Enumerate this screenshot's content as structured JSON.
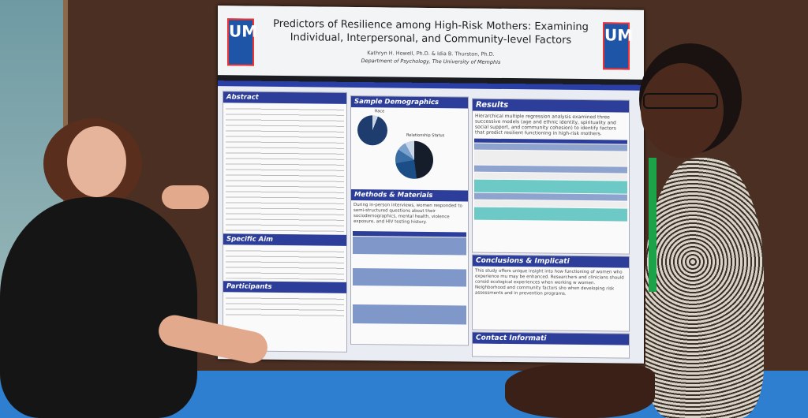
{
  "poster": {
    "logo_text": "UM",
    "title": "Predictors of Resilience among High-Risk Mothers: Examining Individual, Interpersonal, and Community-level Factors",
    "authors": "Kathryn H. Howell, Ph.D. & Idia B. Thurston, Ph.D.",
    "department": "Department of Psychology, The University of Memphis",
    "sections": {
      "abstract": "Abstract",
      "specific_aim": "Specific Aim",
      "participants": "Participants",
      "demographics": "Sample Demographics",
      "race": "Race",
      "relationship": "Relationship Status",
      "methods": "Methods & Materials",
      "results": "Results",
      "conclusions": "Conclusions & Implicati",
      "contact": "Contact Informati"
    },
    "methods_text": "During in-person interviews, women responded to semi-structured questions about their sociodemographics, mental health, violence exposure, and HIV testing history.",
    "results_text": "Hierarchical multiple regression analysis examined three successive models (age and ethnic identity, spirituality and social support, and community cohesion) to identify factors that predict resilient functioning in high-risk mothers.",
    "conclusions_text": "This study offers unique insight into how functioning of women who experience mu may be enhanced. Researchers and clinicians should consid ecological experiences when working w women. Neighborhood and community factors sho when developing risk assessments and in prevention programs.",
    "colors": {
      "brand_blue": "#2c3e9a",
      "logo_blue": "#1f55a6",
      "teal_highlight": "#6cc9c6"
    }
  }
}
